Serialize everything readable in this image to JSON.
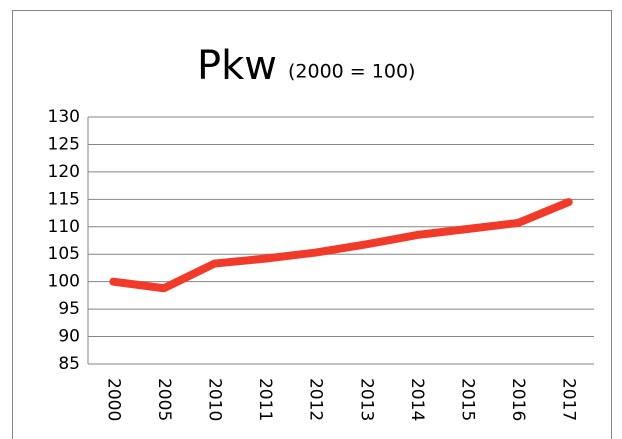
{
  "chart_data": {
    "type": "line",
    "title": "Pkw",
    "subtitle": "(2000 = 100)",
    "categories": [
      "2000",
      "2005",
      "2010",
      "2011",
      "2012",
      "2013",
      "2014",
      "2015",
      "2016",
      "2017"
    ],
    "series": [
      {
        "color": "#f23a2a",
        "values": [
          100,
          98.8,
          103.3,
          104.2,
          105.3,
          106.8,
          108.5,
          109.6,
          110.7,
          114.5
        ]
      }
    ],
    "ylim": [
      85,
      130
    ],
    "yticks": [
      85,
      90,
      95,
      100,
      105,
      110,
      115,
      120,
      125,
      130
    ],
    "grid": true
  }
}
